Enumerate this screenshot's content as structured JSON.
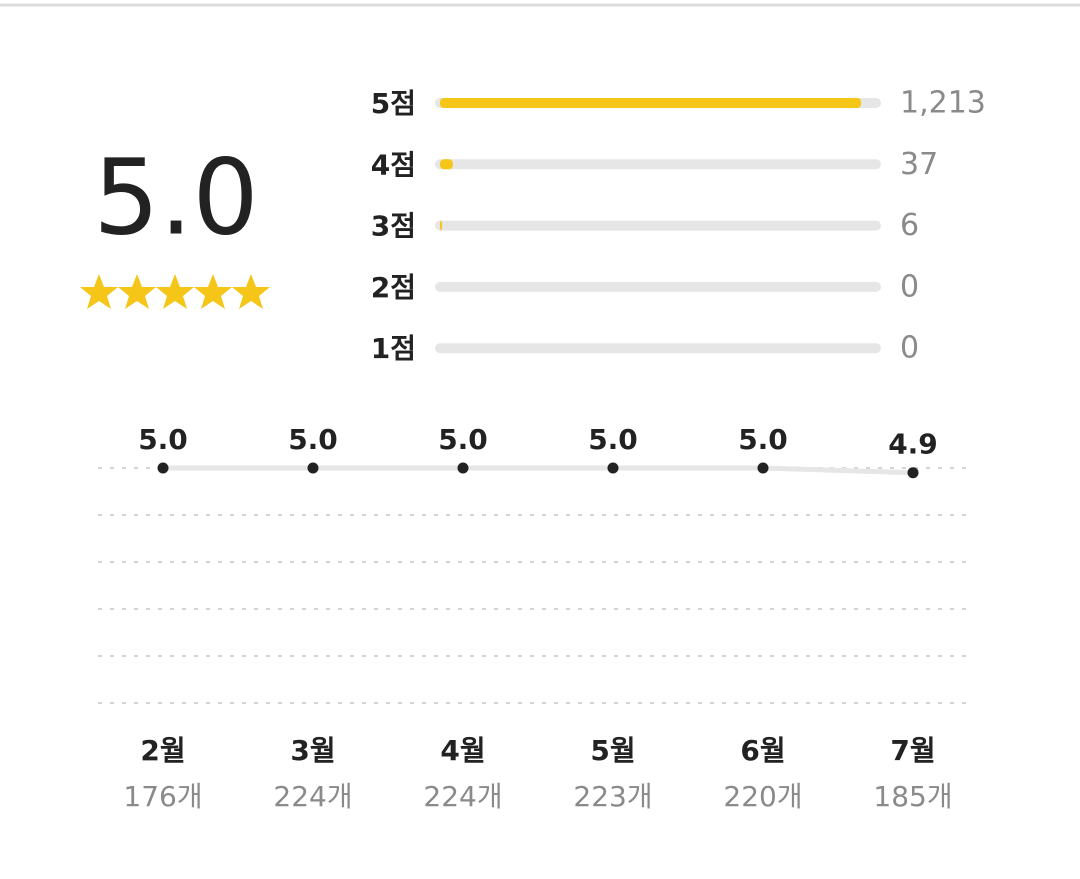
{
  "rating": {
    "score": "5.0"
  },
  "distribution": {
    "labels": [
      "5점",
      "4점",
      "3점",
      "2점",
      "1점"
    ],
    "values": [
      1213,
      37,
      6,
      0,
      0
    ],
    "value_labels": [
      "1,213",
      "37",
      "6",
      "0",
      "0"
    ],
    "color": "#f5c518"
  },
  "trend": {
    "type": "line",
    "categories": [
      "2월",
      "3월",
      "4월",
      "5월",
      "6월",
      "7월"
    ],
    "values": [
      5.0,
      5.0,
      5.0,
      5.0,
      5.0,
      4.9
    ],
    "value_labels": [
      "5.0",
      "5.0",
      "5.0",
      "5.0",
      "5.0",
      "4.9"
    ],
    "counts": [
      "176개",
      "224개",
      "224개",
      "223개",
      "220개",
      "185개"
    ],
    "ylim": [
      0,
      5
    ],
    "yticks": [
      0,
      1,
      2,
      3,
      4,
      5
    ],
    "grid": true
  }
}
